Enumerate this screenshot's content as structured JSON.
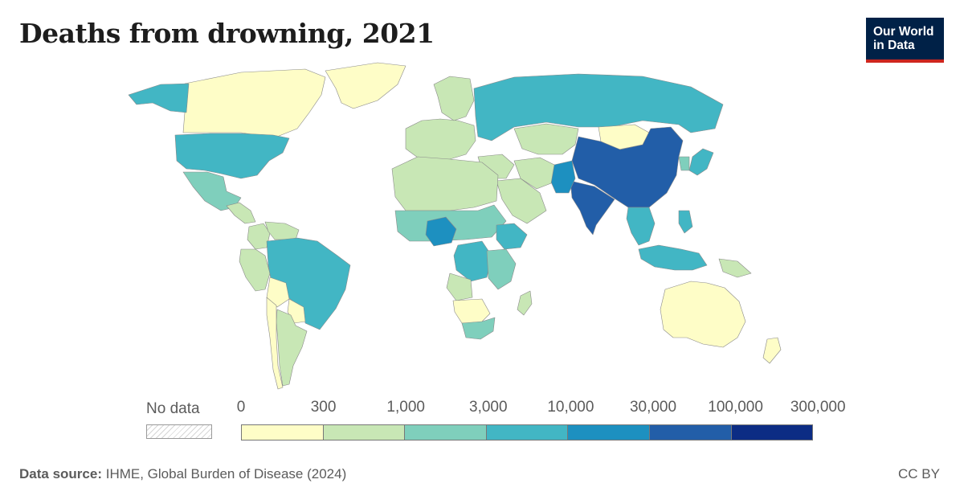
{
  "header": {
    "title": "Deaths from drowning, 2021",
    "logo_line1": "Our World",
    "logo_line2": "in Data"
  },
  "legend": {
    "no_data_label": "No data",
    "ticks": [
      "0",
      "300",
      "1,000",
      "3,000",
      "10,000",
      "30,000",
      "100,000",
      "300,000"
    ],
    "colors": [
      "#fefdc7",
      "#c8e7b5",
      "#7fcfbc",
      "#42b6c4",
      "#1d90c0",
      "#225ea8",
      "#0c2c84"
    ]
  },
  "footer": {
    "source_label": "Data source:",
    "source_text": "IHME, Global Burden of Disease (2024)",
    "license": "CC BY"
  },
  "map_data": {
    "type": "choropleth",
    "unit": "deaths",
    "regions": [
      {
        "name": "Canada",
        "bin": 0
      },
      {
        "name": "Greenland",
        "bin": 0
      },
      {
        "name": "Alaska",
        "bin": 3
      },
      {
        "name": "United States",
        "bin": 3
      },
      {
        "name": "Mexico",
        "bin": 2
      },
      {
        "name": "Central America",
        "bin": 1
      },
      {
        "name": "Colombia",
        "bin": 1
      },
      {
        "name": "Venezuela",
        "bin": 1
      },
      {
        "name": "Peru",
        "bin": 1
      },
      {
        "name": "Brazil",
        "bin": 3
      },
      {
        "name": "Bolivia",
        "bin": 0
      },
      {
        "name": "Paraguay",
        "bin": 0
      },
      {
        "name": "Argentina",
        "bin": 1
      },
      {
        "name": "Chile",
        "bin": 0
      },
      {
        "name": "Western Europe",
        "bin": 1
      },
      {
        "name": "Scandinavia",
        "bin": 1
      },
      {
        "name": "Russia",
        "bin": 3
      },
      {
        "name": "Kazakhstan",
        "bin": 1
      },
      {
        "name": "Mongolia",
        "bin": 0
      },
      {
        "name": "China",
        "bin": 5
      },
      {
        "name": "India",
        "bin": 5
      },
      {
        "name": "Pakistan",
        "bin": 4
      },
      {
        "name": "Middle East",
        "bin": 1
      },
      {
        "name": "Arabian Peninsula",
        "bin": 1
      },
      {
        "name": "Iran",
        "bin": 1
      },
      {
        "name": "Southeast Asia",
        "bin": 3
      },
      {
        "name": "Indonesia",
        "bin": 3
      },
      {
        "name": "Philippines",
        "bin": 3
      },
      {
        "name": "Japan",
        "bin": 3
      },
      {
        "name": "Koreas",
        "bin": 2
      },
      {
        "name": "Australia",
        "bin": 0
      },
      {
        "name": "New Zealand",
        "bin": 0
      },
      {
        "name": "Papua New Guinea",
        "bin": 1
      },
      {
        "name": "North Africa",
        "bin": 1
      },
      {
        "name": "Sahel",
        "bin": 2
      },
      {
        "name": "Nigeria",
        "bin": 4
      },
      {
        "name": "Ethiopia",
        "bin": 3
      },
      {
        "name": "DR Congo",
        "bin": 3
      },
      {
        "name": "East Africa",
        "bin": 2
      },
      {
        "name": "Angola",
        "bin": 1
      },
      {
        "name": "Namibia / Botswana",
        "bin": 0
      },
      {
        "name": "South Africa",
        "bin": 2
      },
      {
        "name": "Madagascar",
        "bin": 1
      }
    ]
  }
}
